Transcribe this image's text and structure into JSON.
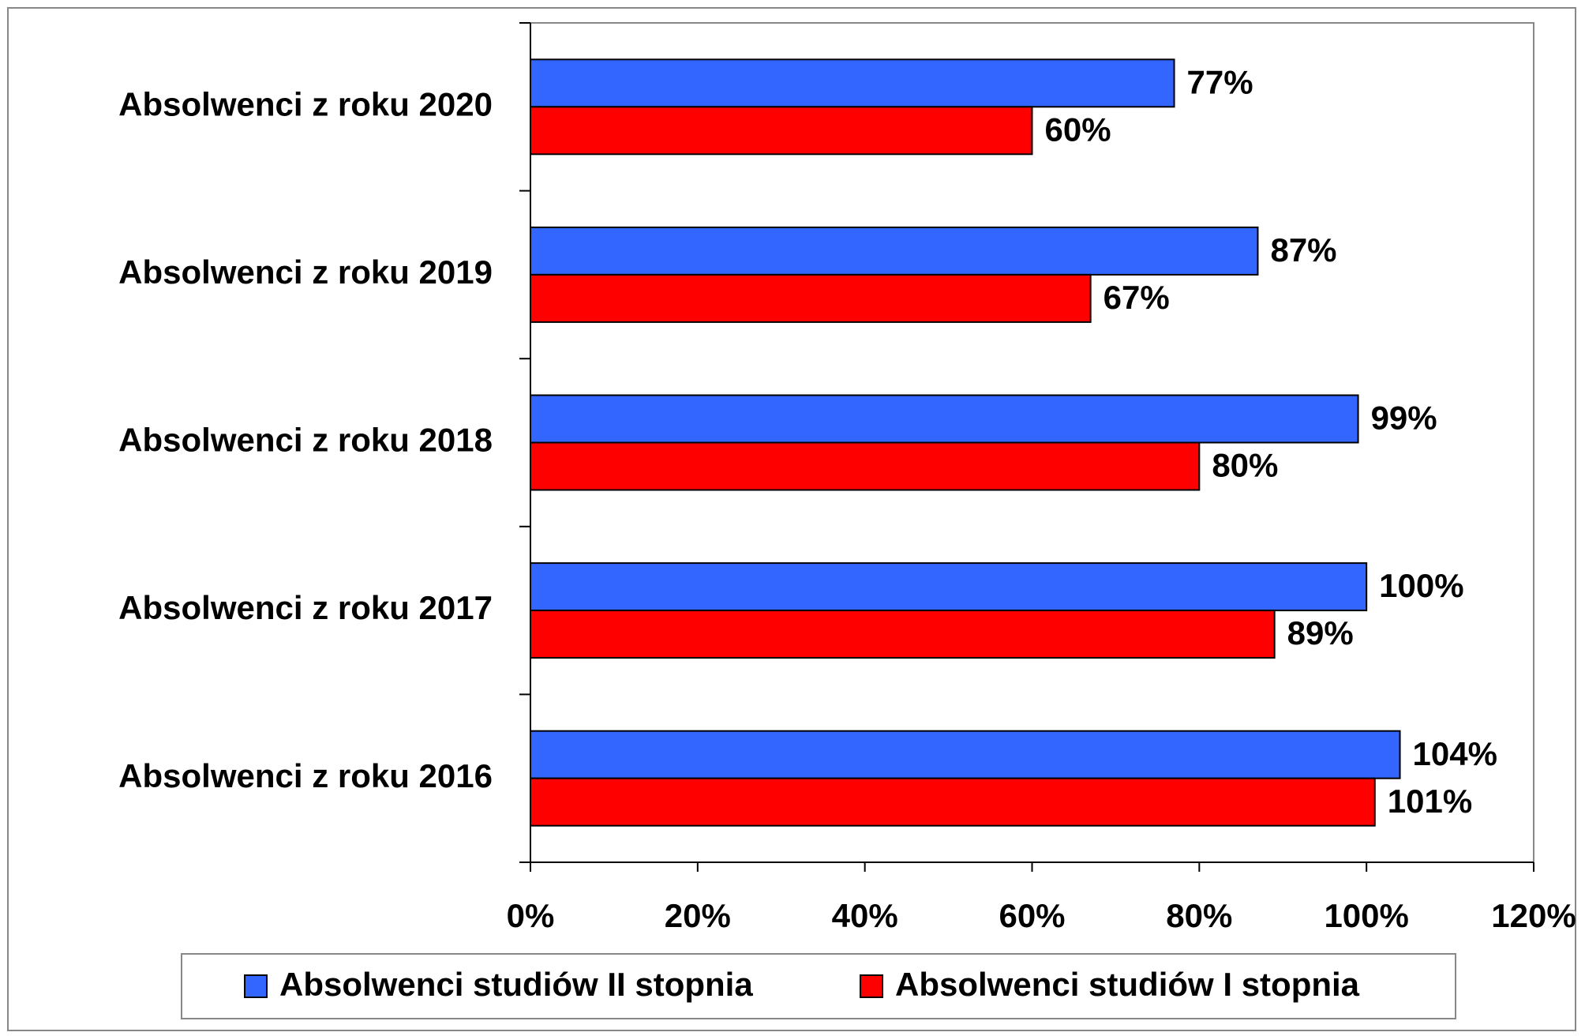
{
  "chart_data": {
    "type": "hbar",
    "categories": [
      "Absolwenci z roku 2020",
      "Absolwenci z roku 2019",
      "Absolwenci z roku 2018",
      "Absolwenci z roku 2017",
      "Absolwenci z roku 2016"
    ],
    "series": [
      {
        "name": "Absolwenci studiów II stopnia",
        "color": "#3366ff",
        "values": [
          77,
          87,
          99,
          100,
          104
        ],
        "value_labels": [
          "77%",
          "87%",
          "99%",
          "100%",
          "104%"
        ]
      },
      {
        "name": "Absolwenci studiów I stopnia",
        "color": "#ff0000",
        "values": [
          60,
          67,
          80,
          89,
          101
        ],
        "value_labels": [
          "60%",
          "67%",
          "80%",
          "89%",
          "101%"
        ]
      }
    ],
    "xlim": [
      0,
      120
    ],
    "xticks": [
      {
        "value": 0,
        "label": "0%"
      },
      {
        "value": 20,
        "label": "20%"
      },
      {
        "value": 40,
        "label": "40%"
      },
      {
        "value": 60,
        "label": "60%"
      },
      {
        "value": 80,
        "label": "80%"
      },
      {
        "value": 100,
        "label": "100%"
      },
      {
        "value": 120,
        "label": "120%"
      }
    ],
    "grid": false,
    "legend": "bottom"
  }
}
